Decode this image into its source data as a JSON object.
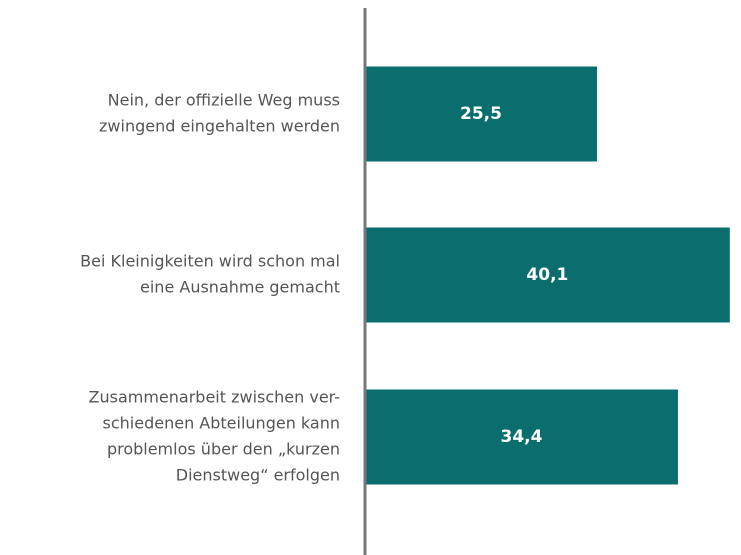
{
  "chart_data": {
    "type": "bar",
    "orientation": "horizontal",
    "categories": [
      [
        "Nein, der offizielle Weg muss",
        "zwingend eingehalten werden"
      ],
      [
        "Bei Kleinigkeiten wird schon mal",
        "eine Ausnahme gemacht"
      ],
      [
        "Zusammenarbeit zwischen ver-",
        "schiedenen Abteilungen kann",
        "problemlos über den „kurzen",
        "Dienstweg“ erfolgen"
      ]
    ],
    "values": [
      25.5,
      40.1,
      34.4
    ],
    "value_labels": [
      "25,5",
      "40,1",
      "34,4"
    ],
    "color": "#0a6e6e",
    "xlim": [
      0,
      41
    ]
  }
}
